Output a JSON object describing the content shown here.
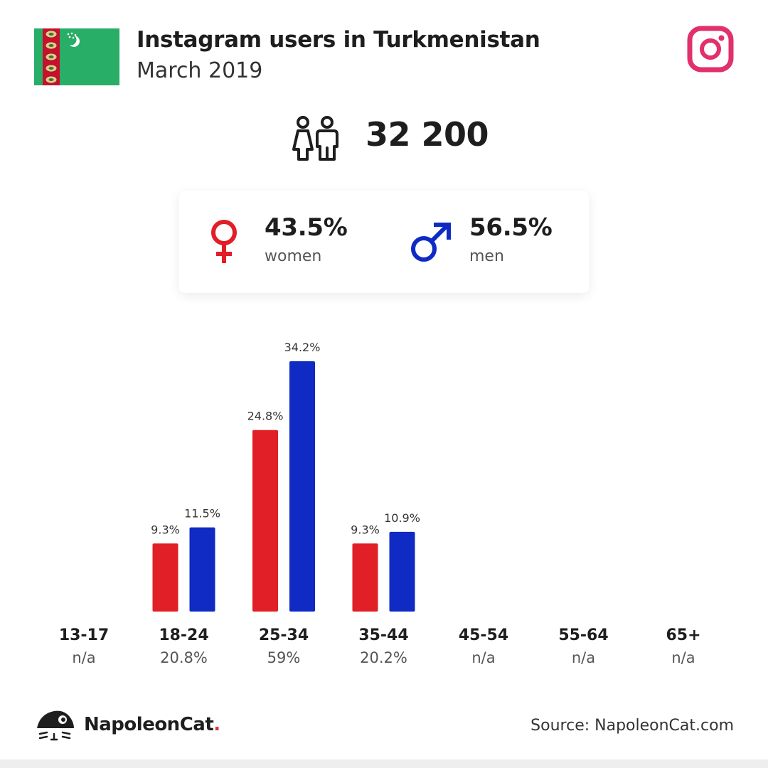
{
  "header": {
    "title": "Instagram users in Turkmenistan",
    "subtitle": "March 2019",
    "flag_icon": "turkmenistan-flag",
    "platform_icon": "instagram-icon"
  },
  "total": {
    "value": "32 200",
    "icon": "people-icon"
  },
  "gender": {
    "women": {
      "percent": "43.5%",
      "label": "women",
      "icon": "female-symbol-icon",
      "color": "#e02026"
    },
    "men": {
      "percent": "56.5%",
      "label": "men",
      "icon": "male-symbol-icon",
      "color": "#0f2bc4"
    }
  },
  "chart_data": {
    "type": "bar",
    "categories": [
      "13-17",
      "18-24",
      "25-34",
      "35-44",
      "45-54",
      "55-64",
      "65+"
    ],
    "category_totals": [
      "n/a",
      "20.8%",
      "59%",
      "20.2%",
      "n/a",
      "n/a",
      "n/a"
    ],
    "series": [
      {
        "color": "#e02026",
        "values": [
          null,
          9.3,
          24.8,
          9.3,
          null,
          null,
          null
        ],
        "labels": [
          "",
          "9.3%",
          "24.8%",
          "9.3%",
          "",
          "",
          ""
        ]
      },
      {
        "color": "#0f2bc4",
        "values": [
          null,
          11.5,
          34.2,
          10.9,
          null,
          null,
          null
        ],
        "labels": [
          "",
          "11.5%",
          "34.2%",
          "10.9%",
          "",
          "",
          ""
        ]
      }
    ],
    "ylim": [
      0,
      34.2
    ],
    "grid": false
  },
  "footer": {
    "brand_name": "NapoleonCat",
    "brand_dot": ".",
    "source": "Source: NapoleonCat.com",
    "logo_icon": "napoleoncat-logo-icon"
  },
  "colors": {
    "women": "#e02026",
    "men": "#0f2bc4",
    "instagram": "#e1306c",
    "flag_green": "#28ae66"
  }
}
